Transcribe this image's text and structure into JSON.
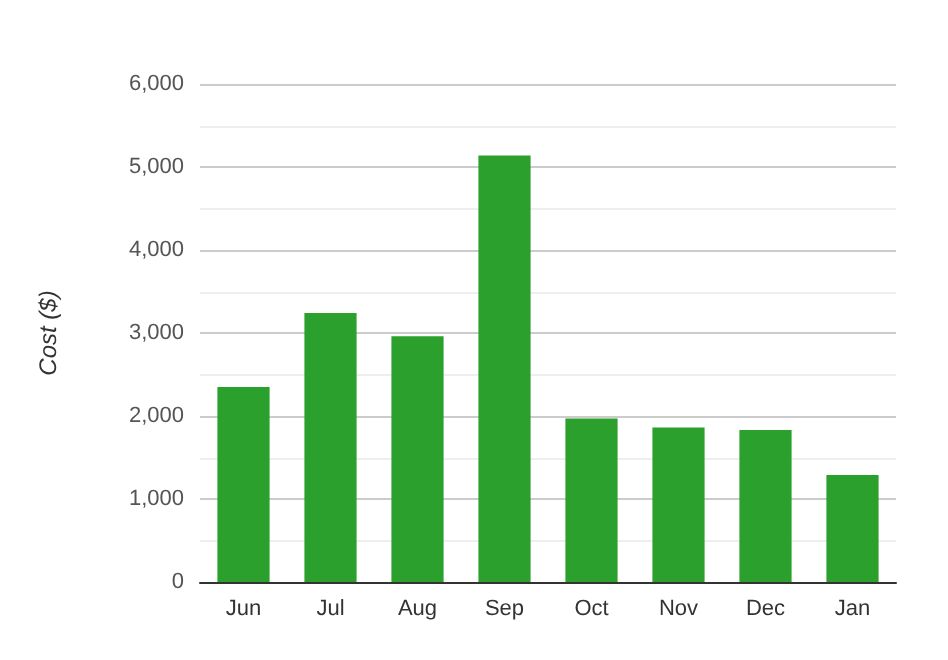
{
  "chart_data": {
    "type": "bar",
    "ylabel": "Cost ($)",
    "categories": [
      "Jun",
      "Jul",
      "Aug",
      "Sep",
      "Oct",
      "Nov",
      "Dec",
      "Jan"
    ],
    "values": [
      2350,
      3240,
      2960,
      5140,
      1970,
      1860,
      1830,
      1290
    ],
    "color": "#2ca02c",
    "ylim": [
      0,
      6000
    ],
    "yticks": [
      0,
      {
        "value": 1000,
        "label": "1,000"
      },
      {
        "value": 2000,
        "label": "2,000"
      },
      {
        "value": 3000,
        "label": "3,000"
      },
      {
        "value": 4000,
        "label": "4,000"
      },
      {
        "value": 5000,
        "label": "5,000"
      },
      {
        "value": 6000,
        "label": "6,000"
      }
    ],
    "grid": "y"
  }
}
